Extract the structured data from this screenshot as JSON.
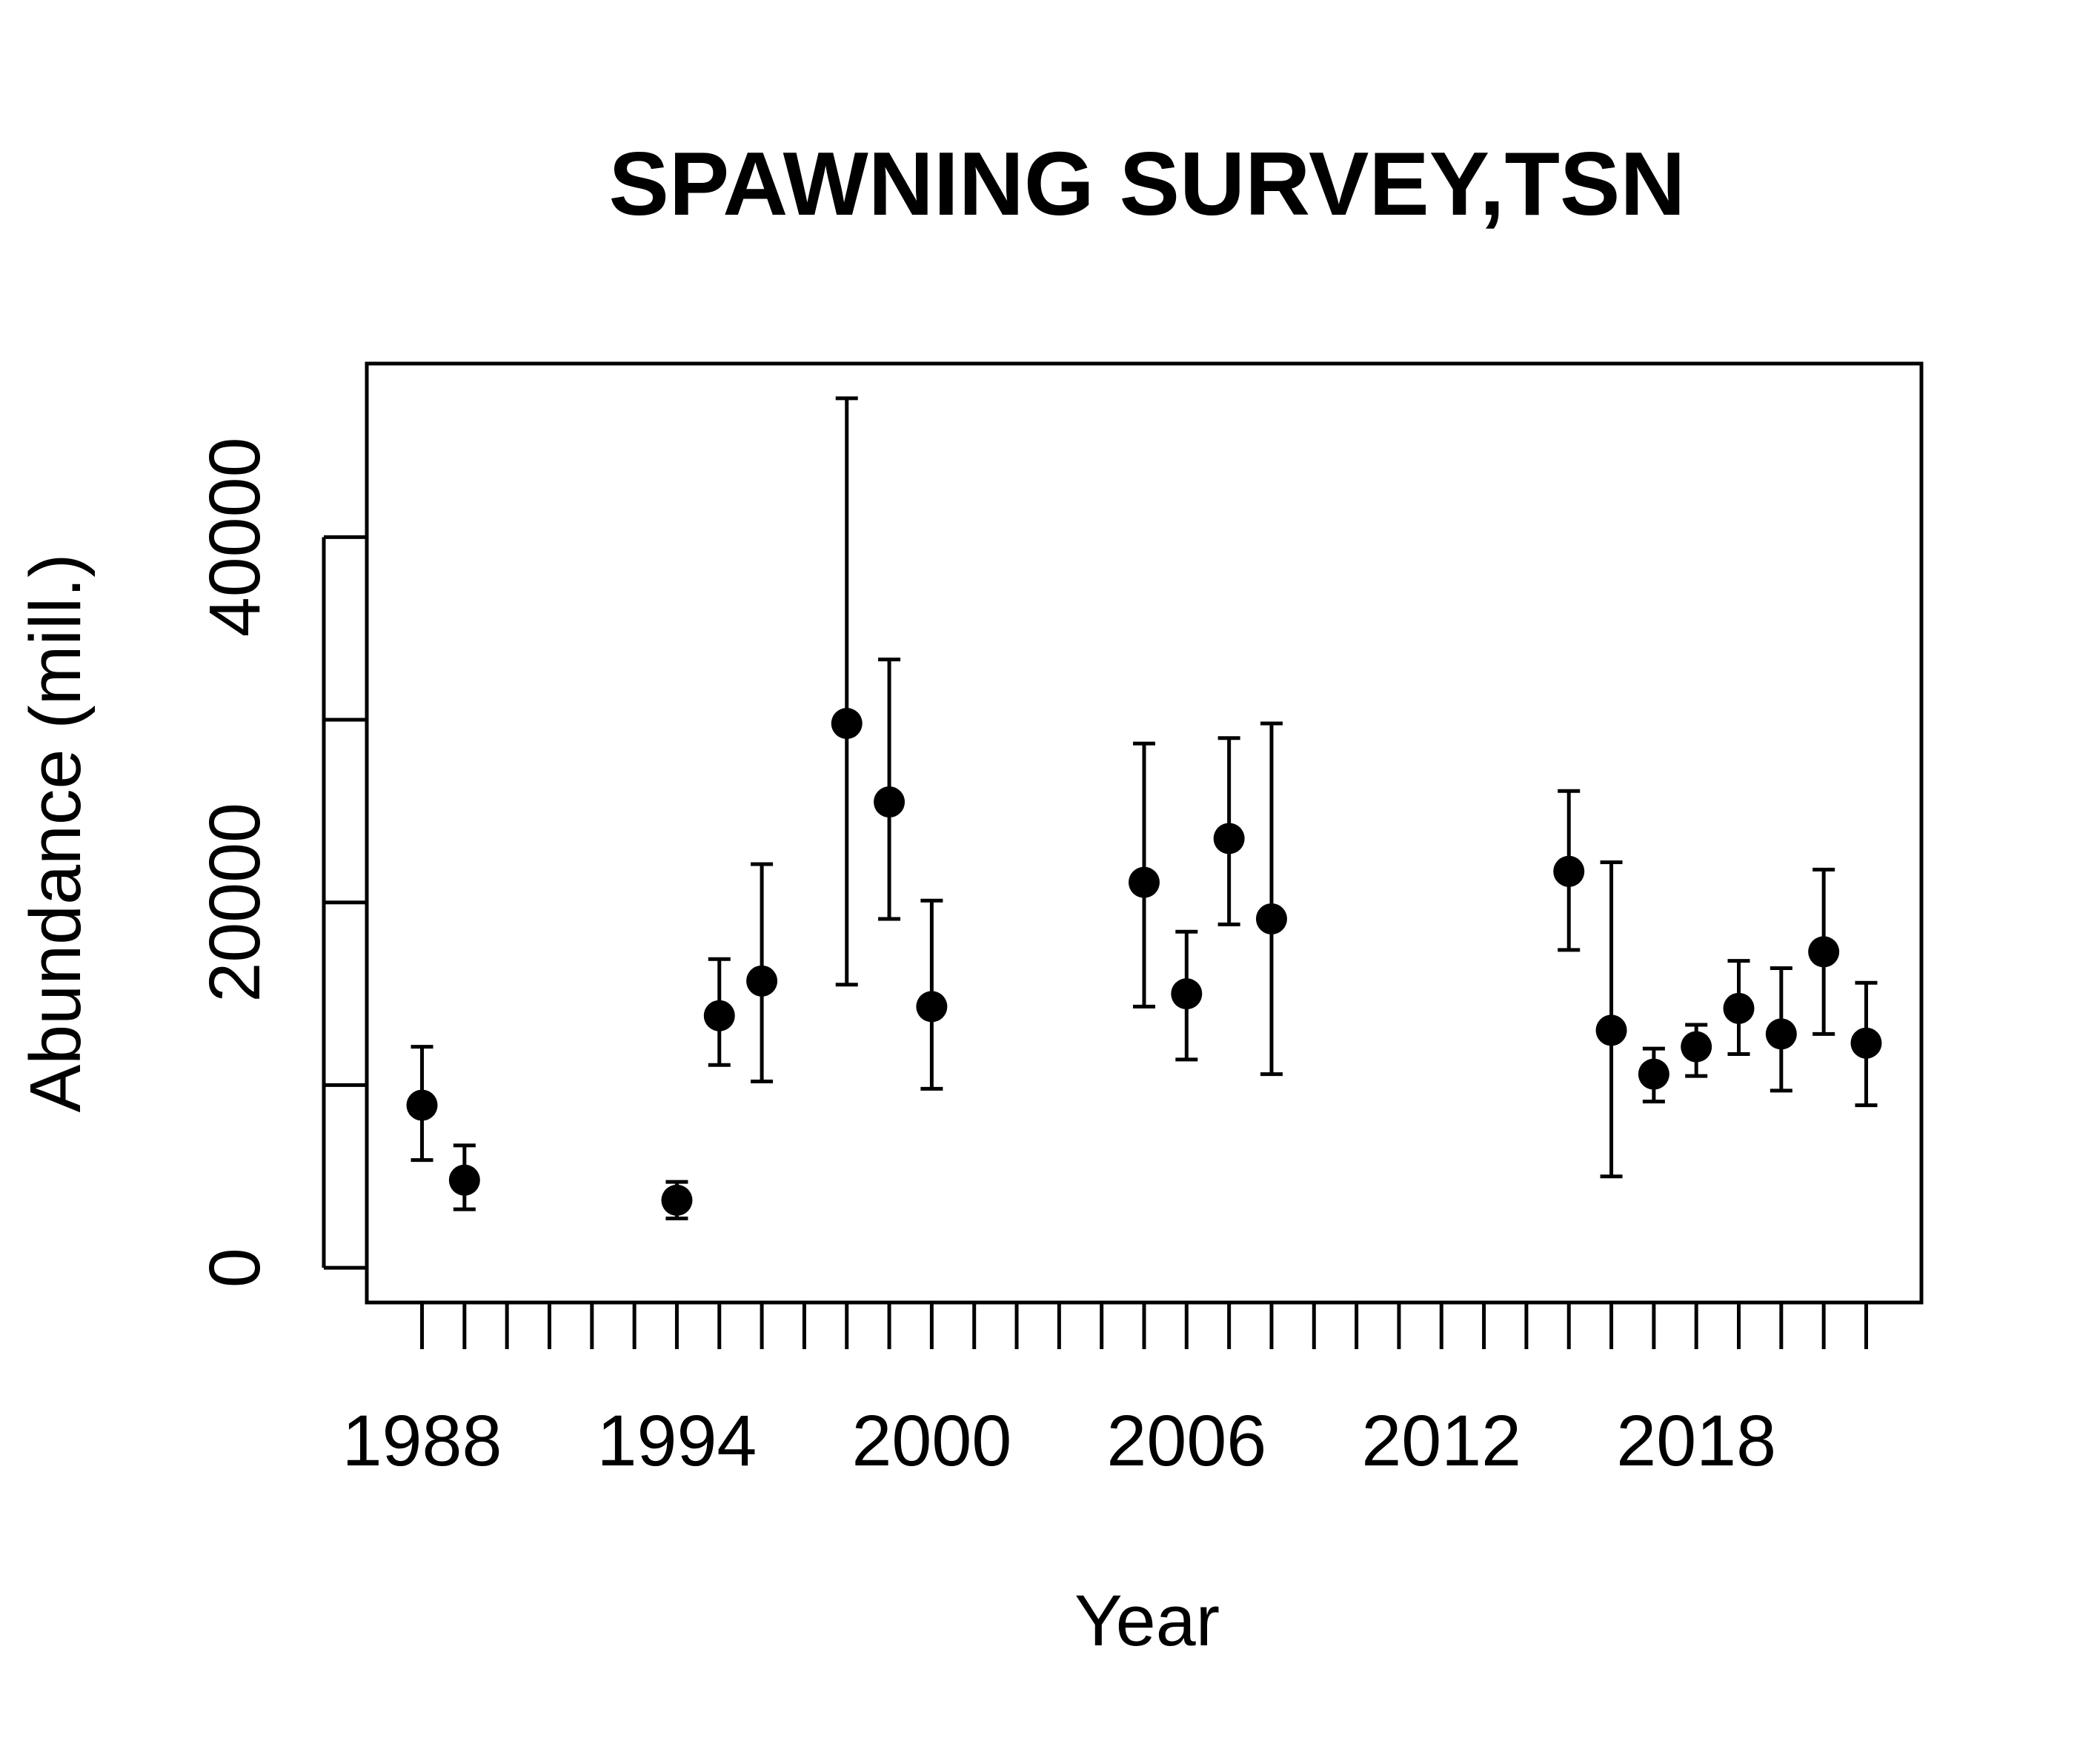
{
  "chart_data": {
    "type": "scatter",
    "title": "SPAWNING SURVEY,TSN",
    "xlabel": "Year",
    "ylabel": "Abundance (mill.)",
    "xlim": [
      1986.7,
      2023.3
    ],
    "ylim": [
      -1900,
      49500
    ],
    "x_minor_ticks": [
      1988,
      1989,
      1990,
      1991,
      1992,
      1993,
      1994,
      1995,
      1996,
      1997,
      1998,
      1999,
      2000,
      2001,
      2002,
      2003,
      2004,
      2005,
      2006,
      2007,
      2008,
      2009,
      2010,
      2011,
      2012,
      2013,
      2014,
      2015,
      2016,
      2017,
      2018,
      2019,
      2020,
      2021,
      2022
    ],
    "x_tick_labels": [
      1988,
      1994,
      2000,
      2006,
      2012,
      2018
    ],
    "y_ticks": [
      0,
      10000,
      20000,
      30000,
      40000
    ],
    "y_tick_labels": [
      0,
      20000,
      40000
    ],
    "grid": false,
    "legend": "none",
    "points": [
      {
        "x": 1988,
        "y": 8900,
        "lo": 5900,
        "hi": 12100
      },
      {
        "x": 1989,
        "y": 4800,
        "lo": 3200,
        "hi": 6700
      },
      {
        "x": 1994,
        "y": 3700,
        "lo": 2700,
        "hi": 4700
      },
      {
        "x": 1995,
        "y": 13800,
        "lo": 11100,
        "hi": 16900
      },
      {
        "x": 1996,
        "y": 15700,
        "lo": 10200,
        "hi": 22100
      },
      {
        "x": 1998,
        "y": 29800,
        "lo": 15500,
        "hi": 47600
      },
      {
        "x": 1999,
        "y": 25500,
        "lo": 19100,
        "hi": 33300
      },
      {
        "x": 2000,
        "y": 14300,
        "lo": 9800,
        "hi": 20100
      },
      {
        "x": 2005,
        "y": 21100,
        "lo": 14300,
        "hi": 28700
      },
      {
        "x": 2006,
        "y": 15000,
        "lo": 11400,
        "hi": 18400
      },
      {
        "x": 2007,
        "y": 23500,
        "lo": 18800,
        "hi": 29000
      },
      {
        "x": 2008,
        "y": 19100,
        "lo": 10600,
        "hi": 29800
      },
      {
        "x": 2015,
        "y": 21700,
        "lo": 17400,
        "hi": 26100
      },
      {
        "x": 2016,
        "y": 13000,
        "lo": 5000,
        "hi": 22200
      },
      {
        "x": 2017,
        "y": 10600,
        "lo": 9100,
        "hi": 12000
      },
      {
        "x": 2018,
        "y": 12100,
        "lo": 10500,
        "hi": 13300
      },
      {
        "x": 2019,
        "y": 14200,
        "lo": 11700,
        "hi": 16800
      },
      {
        "x": 2020,
        "y": 12800,
        "lo": 9700,
        "hi": 16400
      },
      {
        "x": 2021,
        "y": 17300,
        "lo": 12800,
        "hi": 21800
      },
      {
        "x": 2022,
        "y": 12300,
        "lo": 8900,
        "hi": 15600
      }
    ]
  }
}
